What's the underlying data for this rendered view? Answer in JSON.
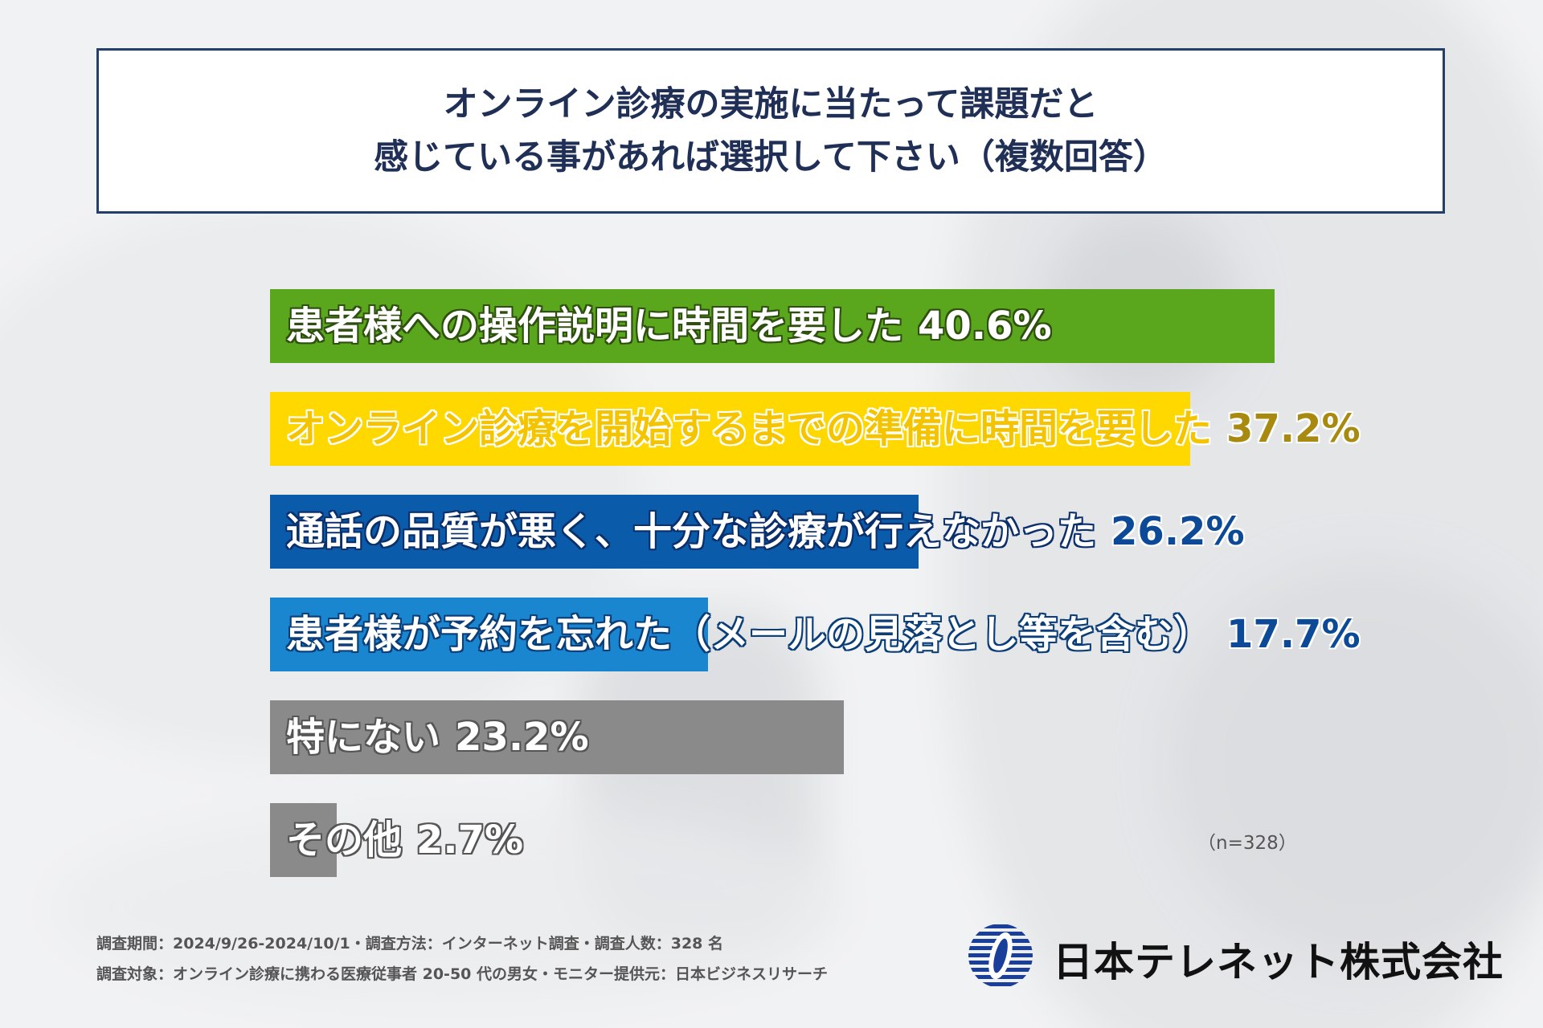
{
  "title": {
    "line1": "オンライン診療の実施に当たって課題だと",
    "line2": "感じている事があれば選択して下さい（複数回答）"
  },
  "chart_data": {
    "type": "bar",
    "orientation": "horizontal",
    "title": "オンライン診療の実施に当たって課題だと感じている事があれば選択して下さい（複数回答）",
    "categories": [
      "患者様への操作説明に時間を要した",
      "オンライン診療を開始するまでの準備に時間を要した",
      "通話の品質が悪く、十分な診療が行えなかった",
      "患者様が予約を忘れた（メールの見落とし等を含む）",
      "特にない",
      "その他"
    ],
    "values": [
      40.6,
      37.2,
      26.2,
      17.7,
      23.2,
      2.7
    ],
    "value_labels": [
      "40.6%",
      "37.2%",
      "26.2%",
      "17.7%",
      "23.2%",
      "2.7%"
    ],
    "colors": [
      "#5aa61c",
      "#ffd800",
      "#0a5cab",
      "#1a86cf",
      "#8a8a8a",
      "#8a8a8a"
    ],
    "xlim": [
      0,
      40.6
    ],
    "note": "（n=328）"
  },
  "footer": {
    "line1": "調査期間：2024/9/26-2024/10/1・調査方法：インターネット調査・調査人数：328 名",
    "line2": "調査対象：オンライン診療に携わる医療従事者 20‐50 代の男女・モニター提供元：日本ビジネスリサーチ"
  },
  "company": "日本テレネット株式会社"
}
